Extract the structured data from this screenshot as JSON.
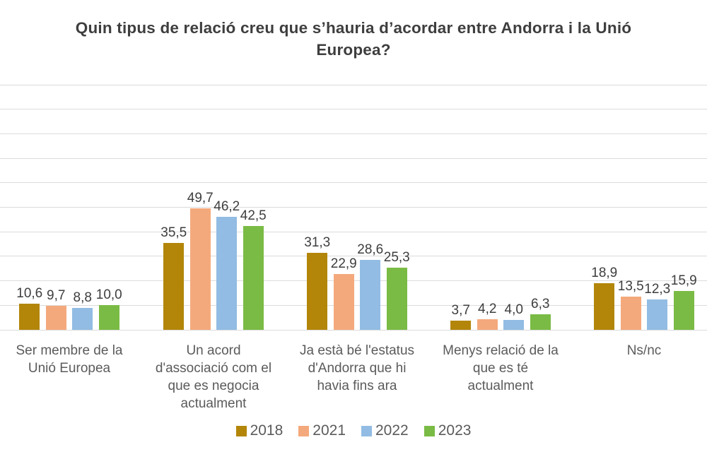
{
  "chart_data": {
    "type": "bar",
    "title": "Quin tipus de relació creu que s’hauria d’acordar entre Andorra i la Unió Europea?",
    "categories": [
      [
        "Ser membre de la",
        "Unió Europea"
      ],
      [
        "Un acord",
        "d'associació com el",
        "que es negocia",
        "actualment"
      ],
      [
        "Ja està bé l'estatus",
        "d'Andorra que hi",
        "havia fins ara"
      ],
      [
        "Menys relació de la",
        "que es té",
        "actualment"
      ],
      [
        "Ns/nc"
      ]
    ],
    "series": [
      {
        "name": "2018",
        "color": "#b3860a",
        "values": [
          10.6,
          35.5,
          31.3,
          3.7,
          18.9
        ]
      },
      {
        "name": "2021",
        "color": "#f4a97c",
        "values": [
          9.7,
          49.7,
          22.9,
          4.2,
          13.5
        ]
      },
      {
        "name": "2022",
        "color": "#92bce3",
        "values": [
          8.8,
          46.2,
          28.6,
          4.0,
          12.3
        ]
      },
      {
        "name": "2023",
        "color": "#7abb45",
        "values": [
          10.0,
          42.5,
          25.3,
          6.3,
          15.9
        ]
      }
    ],
    "value_label_decimal_separator": ",",
    "ylim": [
      0,
      100
    ],
    "gridline_step": 10,
    "grid": true,
    "legend_position": "bottom",
    "colors": {
      "gridline": "#dbdbdb",
      "title_text": "#3e3e3e",
      "value_text": "#3e3e3e",
      "label_text": "#5b5b5b",
      "background": "#ffffff"
    }
  }
}
